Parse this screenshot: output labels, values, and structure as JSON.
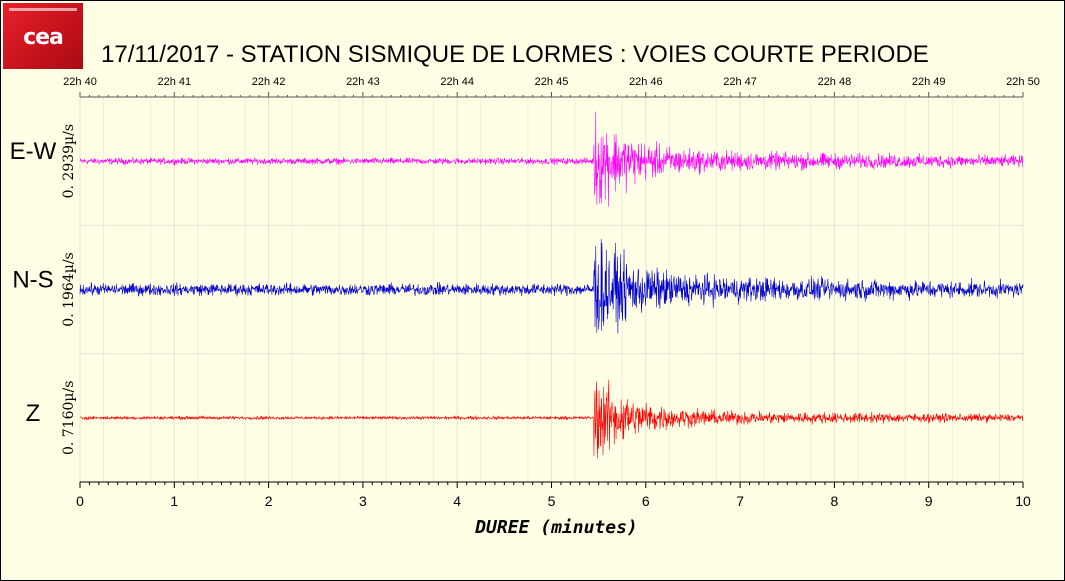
{
  "header": {
    "title": "17/11/2017  -  STATION SISMIQUE DE LORMES : VOIES COURTE PERIODE",
    "logo_text": "cea"
  },
  "chart_data": {
    "type": "line",
    "title": "17/11/2017  -  STATION SISMIQUE DE LORMES : VOIES COURTE PERIODE",
    "xlabel": "DUREE (minutes)",
    "ylabel": "",
    "xlim": [
      0,
      10
    ],
    "x_ticks": [
      "0",
      "1",
      "2",
      "3",
      "4",
      "5",
      "6",
      "7",
      "8",
      "9",
      "10"
    ],
    "top_axis_ticks": [
      "22h 40",
      "22h 41",
      "22h 42",
      "22h 43",
      "22h 44",
      "22h 45",
      "22h 46",
      "22h 47",
      "22h 48",
      "22h 49",
      "22h 50"
    ],
    "grid": true,
    "series": [
      {
        "name": "E-W",
        "scale": "0. 2939µ/s",
        "color": "#ff00ff",
        "event_onset_min": 5.45,
        "pre_event_amplitude": 0.08,
        "peak_amplitude": 1.0,
        "coda_amplitude": 0.3
      },
      {
        "name": "N-S",
        "scale": "0. 1964µ/s",
        "color": "#0000cc",
        "event_onset_min": 5.45,
        "pre_event_amplitude": 0.15,
        "peak_amplitude": 1.0,
        "coda_amplitude": 0.4
      },
      {
        "name": "Z",
        "scale": "0. 7160µ/s",
        "color": "#ff0000",
        "event_onset_min": 5.45,
        "pre_event_amplitude": 0.04,
        "peak_amplitude": 1.0,
        "coda_amplitude": 0.2
      }
    ]
  }
}
